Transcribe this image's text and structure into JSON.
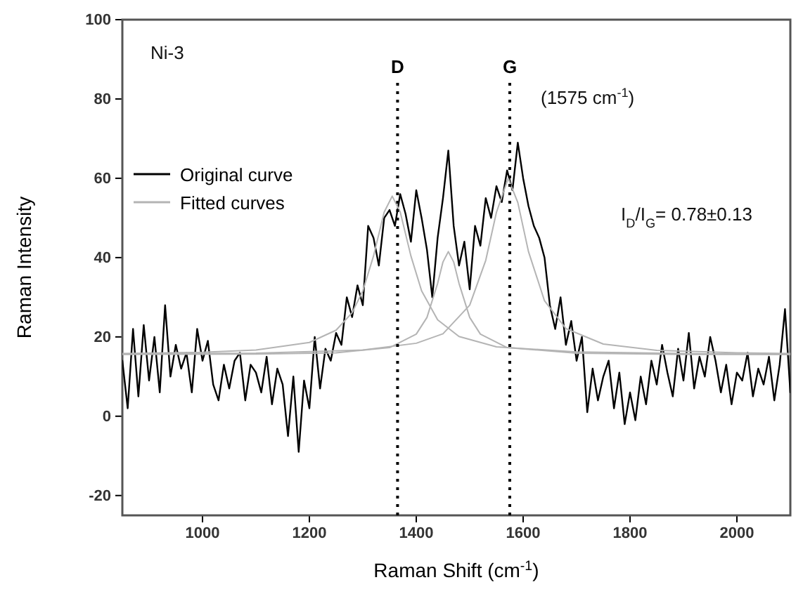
{
  "chart_data": {
    "type": "line",
    "xlabel": "Raman Shift (cm$^{-1}$)",
    "ylabel": "Raman Intensity",
    "xlim": [
      850,
      2100
    ],
    "ylim": [
      -25,
      100
    ],
    "xticks": [
      1000,
      1200,
      1400,
      1600,
      1800,
      2000
    ],
    "yticks": [
      -20,
      0,
      20,
      40,
      60,
      80,
      100
    ],
    "grid": false,
    "legend": "top left",
    "marker": "none",
    "line_style": "solid",
    "annotations": [
      "Ni-3",
      "(1575 cm$^{-1}$)",
      "I$_{D}$/I$_{G}$= 0.78±0.13"
    ],
    "ref_lines": [
      {
        "axis": "x",
        "value": 1365,
        "label": "D",
        "color": "#000000",
        "line_style": "dotted"
      },
      {
        "axis": "x",
        "value": 1575,
        "label": "G",
        "color": "#000000",
        "line_style": "dotted"
      }
    ],
    "series": [
      {
        "name": "Original curve",
        "color": "#000000",
        "x": [
          850,
          860,
          870,
          880,
          890,
          900,
          910,
          920,
          930,
          940,
          950,
          960,
          970,
          980,
          990,
          1000,
          1010,
          1020,
          1030,
          1040,
          1050,
          1060,
          1070,
          1080,
          1090,
          1100,
          1110,
          1120,
          1130,
          1140,
          1150,
          1160,
          1170,
          1180,
          1190,
          1200,
          1210,
          1220,
          1230,
          1240,
          1250,
          1260,
          1270,
          1280,
          1290,
          1300,
          1310,
          1320,
          1330,
          1340,
          1350,
          1360,
          1370,
          1380,
          1390,
          1400,
          1410,
          1420,
          1430,
          1440,
          1450,
          1460,
          1470,
          1480,
          1490,
          1500,
          1510,
          1520,
          1530,
          1540,
          1550,
          1560,
          1570,
          1580,
          1590,
          1600,
          1610,
          1620,
          1630,
          1640,
          1650,
          1660,
          1670,
          1680,
          1690,
          1700,
          1710,
          1720,
          1730,
          1740,
          1750,
          1760,
          1770,
          1780,
          1790,
          1800,
          1810,
          1820,
          1830,
          1840,
          1850,
          1860,
          1870,
          1880,
          1890,
          1900,
          1910,
          1920,
          1930,
          1940,
          1950,
          1960,
          1970,
          1980,
          1990,
          2000,
          2010,
          2020,
          2030,
          2040,
          2050,
          2060,
          2070,
          2080,
          2090,
          2100
        ],
        "values": [
          14,
          2,
          22,
          5,
          23,
          9,
          20,
          6,
          28,
          10,
          18,
          12,
          16,
          6,
          22,
          14,
          19,
          8,
          4,
          13,
          7,
          14,
          16,
          4,
          13,
          11,
          6,
          15,
          3,
          12,
          8,
          -5,
          10,
          -9,
          9,
          2,
          20,
          7,
          17,
          14,
          21,
          18,
          30,
          25,
          33,
          28,
          48,
          45,
          38,
          50,
          52,
          48,
          56,
          51,
          44,
          57,
          50,
          42,
          30,
          45,
          55,
          67,
          48,
          38,
          44,
          32,
          48,
          43,
          55,
          50,
          58,
          54,
          62,
          57,
          69,
          60,
          53,
          48,
          45,
          40,
          28,
          22,
          30,
          18,
          24,
          14,
          20,
          1,
          12,
          4,
          10,
          14,
          2,
          11,
          -2,
          6,
          -1,
          10,
          3,
          14,
          8,
          18,
          11,
          5,
          17,
          9,
          21,
          7,
          15,
          10,
          20,
          14,
          6,
          13,
          3,
          11,
          9,
          16,
          5,
          12,
          8,
          15,
          4,
          13,
          27,
          6
        ]
      },
      {
        "name": "Fitted curves",
        "color": "#b4b4b4",
        "x": [
          850,
          1000,
          1100,
          1200,
          1250,
          1280,
          1300,
          1320,
          1340,
          1355,
          1370,
          1390,
          1410,
          1440,
          1480,
          1550,
          1700,
          1900,
          2100
        ],
        "values": [
          15.8,
          16.1,
          16.7,
          18.6,
          21.7,
          26.1,
          31.6,
          40.4,
          51.5,
          55.5,
          51.5,
          40.4,
          31.6,
          24.3,
          20.1,
          17.5,
          16.2,
          15.8,
          15.6
        ]
      },
      {
        "color": "#b4b4b4",
        "x": [
          850,
          1100,
          1250,
          1350,
          1400,
          1420,
          1440,
          1450,
          1460,
          1470,
          1480,
          1500,
          1520,
          1570,
          1700,
          1900,
          2100
        ],
        "values": [
          15.6,
          15.7,
          16.0,
          17.3,
          20.7,
          24.9,
          33.5,
          38.9,
          41.5,
          38.9,
          33.5,
          24.9,
          20.7,
          17.3,
          15.9,
          15.6,
          15.6
        ]
      },
      {
        "color": "#b4b4b4",
        "x": [
          850,
          1100,
          1300,
          1400,
          1450,
          1500,
          1530,
          1550,
          1572,
          1590,
          1610,
          1640,
          1680,
          1750,
          1850,
          2000,
          2100
        ],
        "values": [
          15.7,
          15.9,
          16.7,
          18.4,
          20.8,
          28.0,
          39.3,
          51.4,
          60.0,
          53.9,
          41.5,
          29.1,
          22.1,
          18.2,
          16.6,
          16.0,
          15.8
        ]
      }
    ]
  }
}
